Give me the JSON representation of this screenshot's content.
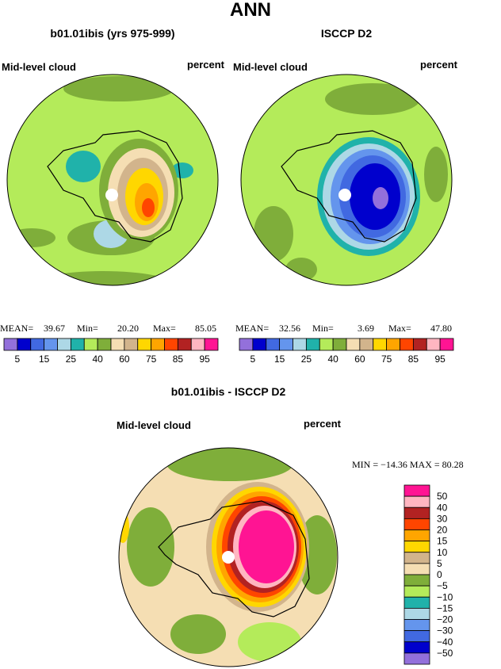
{
  "title": "ANN",
  "palette": [
    "#9370db",
    "#0000cd",
    "#4169e1",
    "#6495ed",
    "#add8e6",
    "#20b2aa",
    "#b4eb5a",
    "#7fae3a",
    "#f5deb3",
    "#d2b48c",
    "#ffd700",
    "#ffa500",
    "#ff4500",
    "#b22222",
    "#ffb6c1",
    "#ff1493"
  ],
  "panels": [
    {
      "title": "b01.01ibis (yrs 975-999)",
      "left_label": "Mid-level cloud",
      "right_label": "percent",
      "stats": [
        "MEAN=",
        "39.67",
        "Min=",
        "20.20",
        "Max=",
        "85.05"
      ],
      "colorbar_labels": [
        "5",
        "15",
        "25",
        "40",
        "60",
        "75",
        "85",
        "95"
      ]
    },
    {
      "title": "ISCCP D2",
      "left_label": "Mid-level cloud",
      "right_label": "percent",
      "stats": [
        "MEAN=",
        "32.56",
        "Min=",
        "3.69",
        "Max=",
        "47.80"
      ],
      "colorbar_labels": [
        "5",
        "15",
        "25",
        "40",
        "60",
        "75",
        "85",
        "95"
      ]
    }
  ],
  "difference": {
    "title": "b01.01ibis - ISCCP D2",
    "left_label": "Mid-level cloud",
    "right_label": "percent",
    "stats": "MIN = −14.36 MAX =  80.28",
    "colorbar_labels": [
      "50",
      "40",
      "30",
      "20",
      "15",
      "10",
      "5",
      "0",
      "−5",
      "−10",
      "−15",
      "−20",
      "−30",
      "−40",
      "−50"
    ]
  }
}
